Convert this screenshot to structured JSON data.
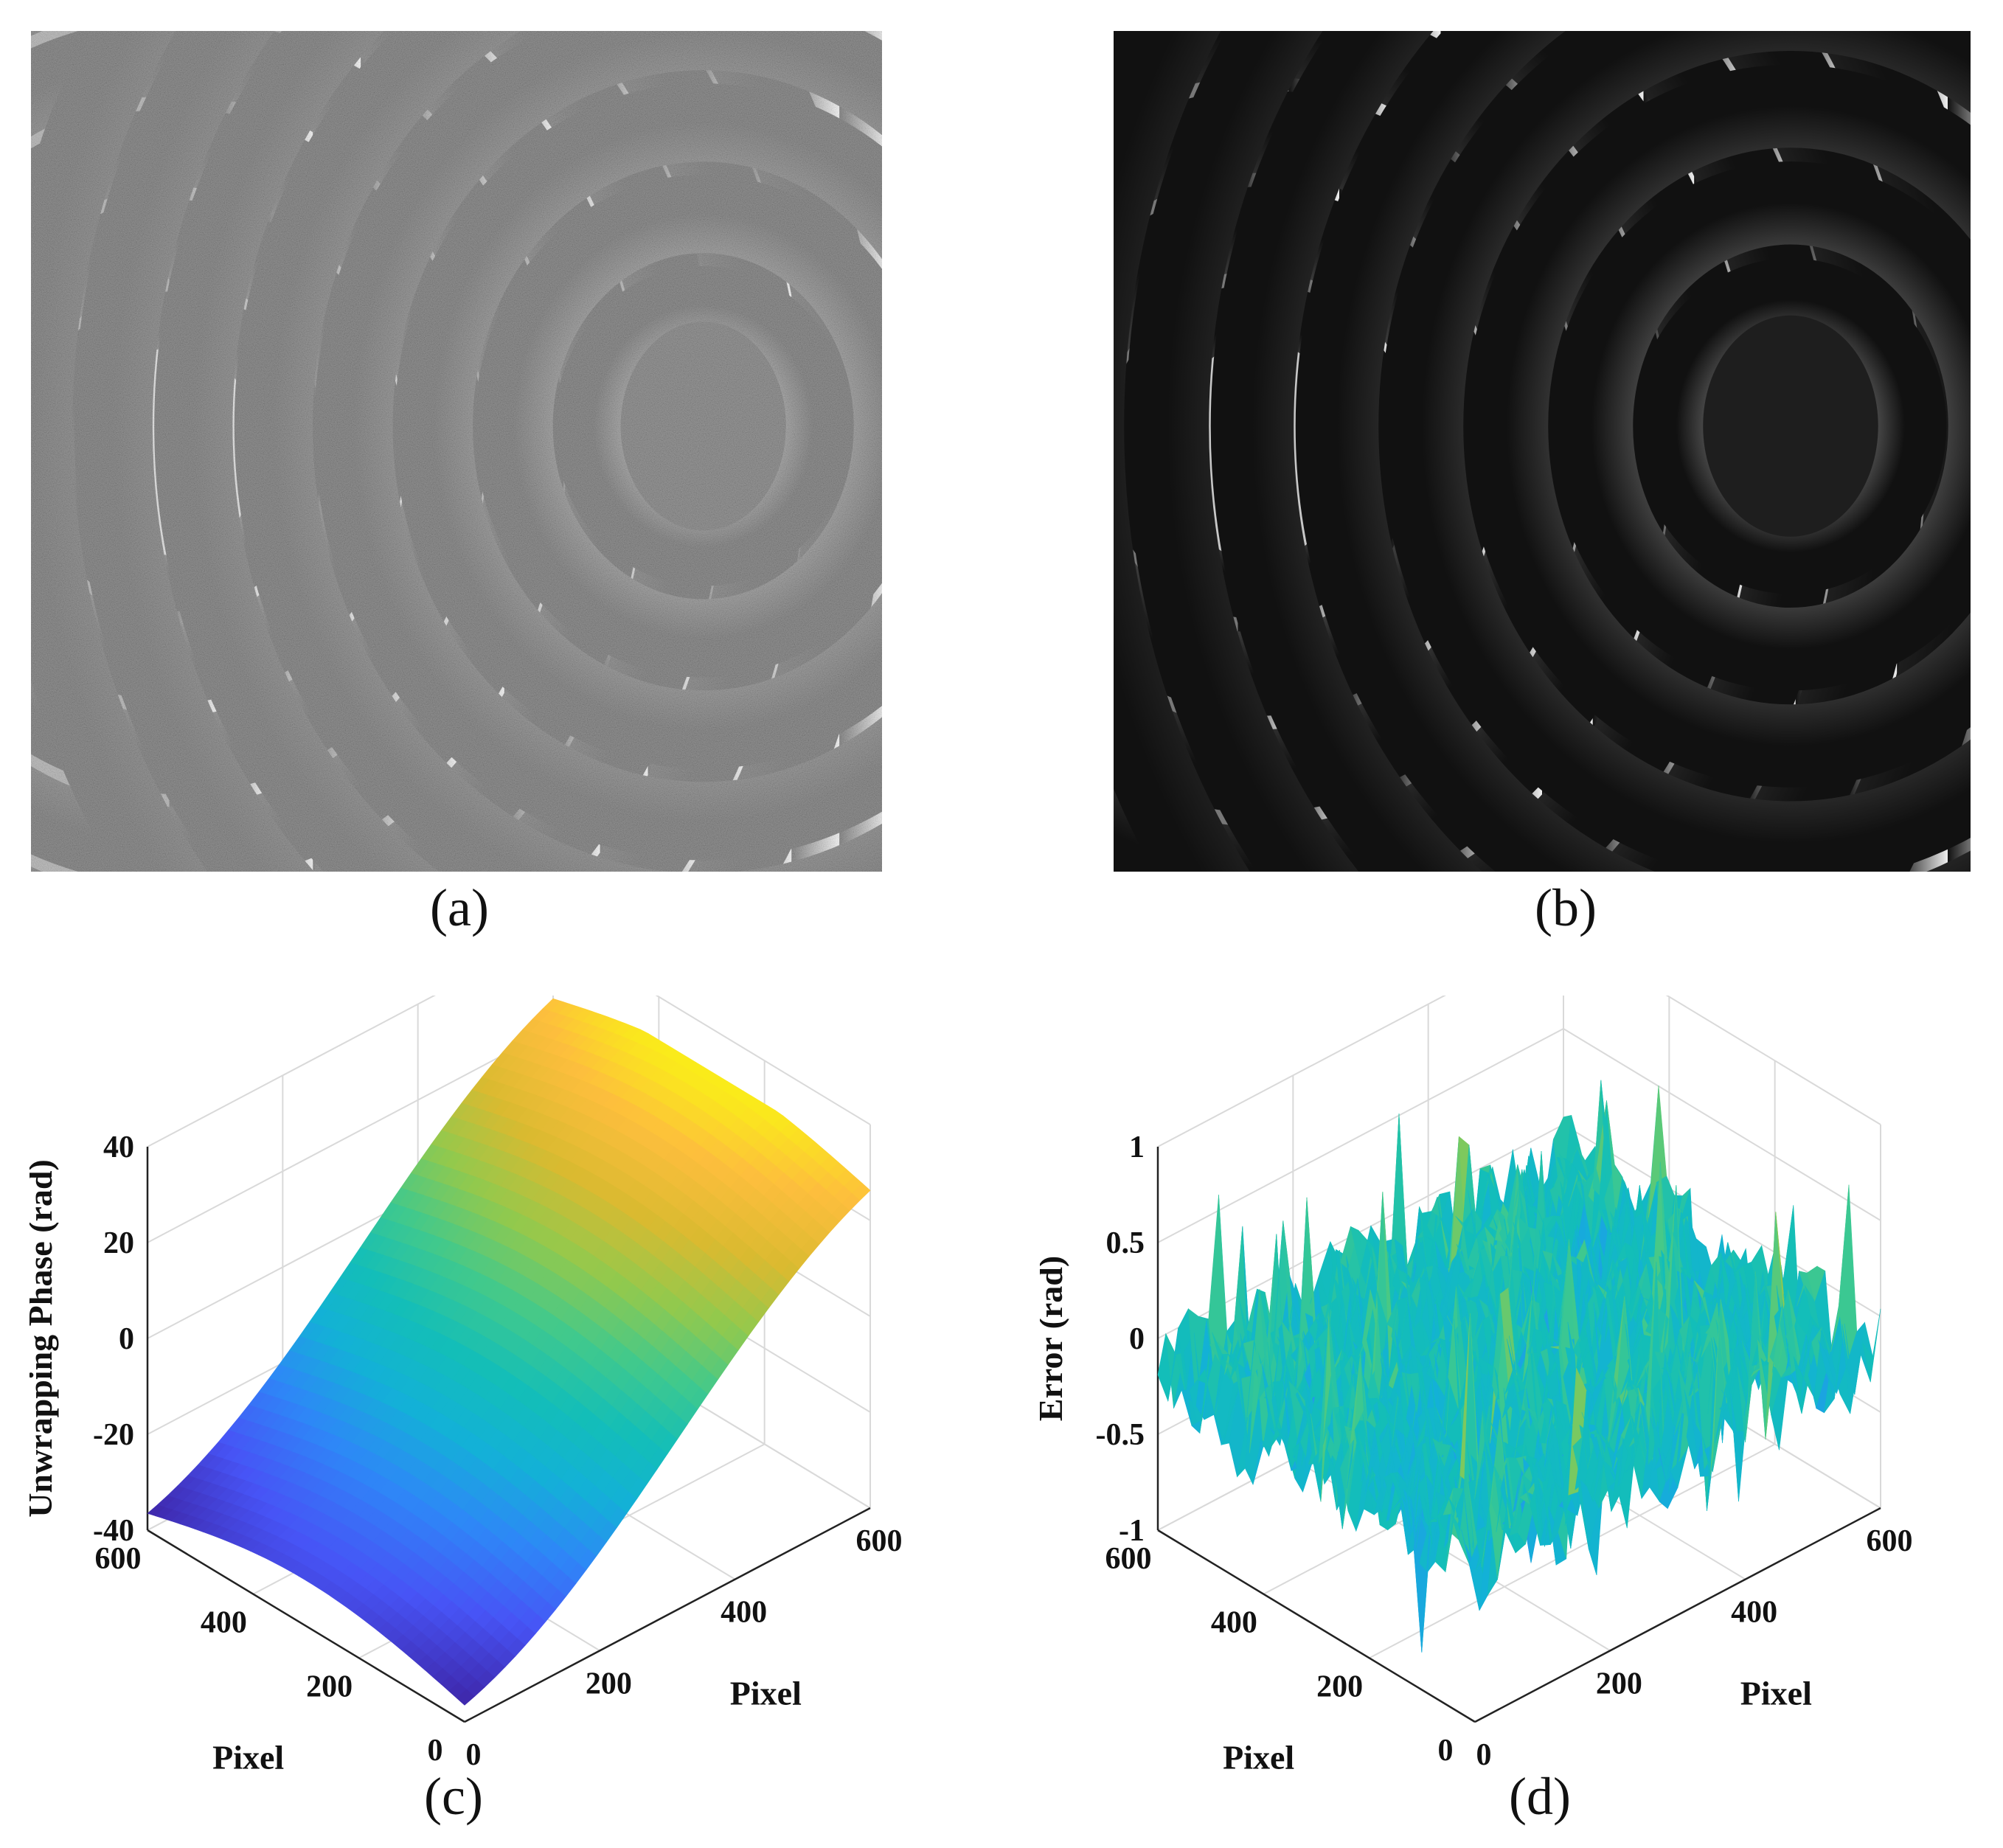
{
  "panels": [
    {
      "id": "a",
      "caption": "(a)",
      "kind": "image",
      "description_type": "noisy-wrapped-phase"
    },
    {
      "id": "b",
      "caption": "(b)",
      "kind": "image",
      "description_type": "filtered-wrapped-phase"
    },
    {
      "id": "c",
      "caption": "(c)"
    },
    {
      "id": "d",
      "caption": "(d)"
    }
  ],
  "chart_data": [
    {
      "type": "surface",
      "panel": "c",
      "zlabel": "Unwrapping Phase  (rad)",
      "xlabel": "Pixel",
      "ylabel": "Pixel",
      "xlim": [
        0,
        600
      ],
      "ylim": [
        0,
        600
      ],
      "zlim": [
        -40,
        40
      ],
      "x_ticks": [
        "0",
        "200",
        "400",
        "600"
      ],
      "y_ticks": [
        "0",
        "200",
        "400",
        "600"
      ],
      "z_ticks": [
        "-40",
        "-20",
        "0",
        "20",
        "40"
      ],
      "grid": true,
      "colormap": "parula",
      "z_approx": {
        "min": -38,
        "max": 31
      }
    },
    {
      "type": "surface",
      "panel": "d",
      "zlabel": "Error (rad)",
      "xlabel": "Pixel",
      "ylabel": "Pixel",
      "xlim": [
        0,
        600
      ],
      "ylim": [
        0,
        600
      ],
      "zlim": [
        -1,
        1
      ],
      "x_ticks": [
        "0",
        "200",
        "400",
        "600"
      ],
      "y_ticks": [
        "0",
        "200",
        "400",
        "600"
      ],
      "z_ticks": [
        "-1",
        "-0.5",
        "0",
        "0.5",
        "1"
      ],
      "grid": true,
      "colormap": "parula",
      "z_approx": {
        "min": -0.9,
        "max": 1.0
      }
    }
  ],
  "colors": {
    "parula_low": "#3e26a8",
    "parula_mid": "#13beb8",
    "parula_high": "#f9fb0e",
    "grid": "#d9d9d9",
    "axis": "#222222"
  }
}
